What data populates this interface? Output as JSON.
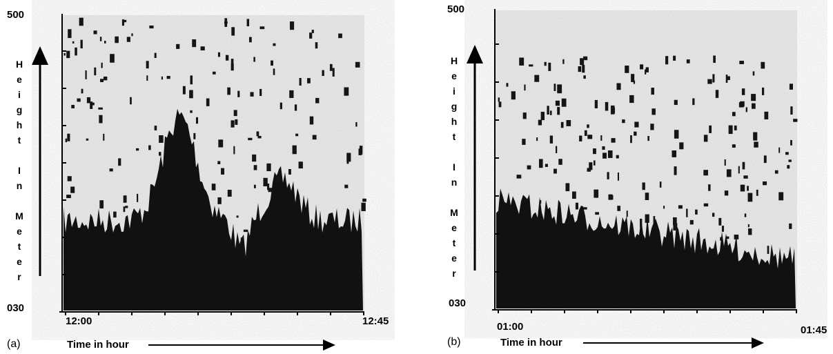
{
  "panels": [
    {
      "label": "(a)",
      "y_top": "500",
      "y_bottom": "030",
      "y_title": "Height In Meter",
      "x_start": "12:00",
      "x_end": "12:45",
      "x_title": "Time in hour"
    },
    {
      "label": "(b)",
      "y_top": "500",
      "y_bottom": "030",
      "y_title": "Height In Meter",
      "x_start": "01:00",
      "x_end": "01:45",
      "x_title": "Time in hour"
    }
  ]
}
